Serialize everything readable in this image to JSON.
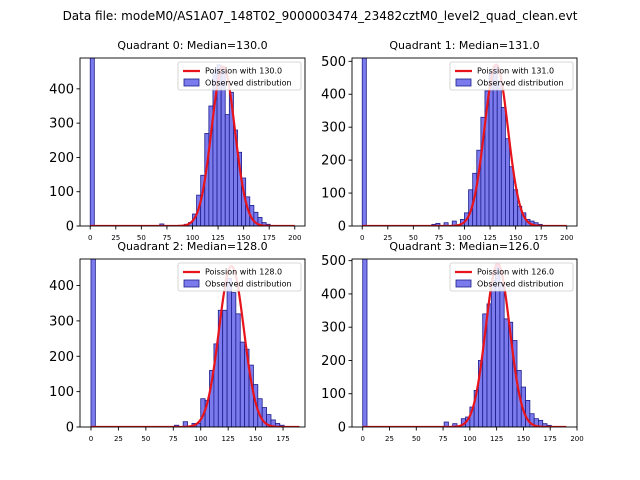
{
  "suptitle": "Data file: modeM0/AS1A07_148T02_9000003474_23482cztM0_level2_quad_clean.evt",
  "colors": {
    "bar_fill": "#7b7bee",
    "bar_edge": "#1d1d8a",
    "fit_line": "#e8141c",
    "axis": "#000000",
    "background": "#ffffff"
  },
  "chart_data": [
    {
      "type": "bar",
      "title": "Quadrant 0: Median=130.0",
      "xlim": [
        -10,
        210
      ],
      "ylim": [
        0,
        490
      ],
      "xticks": [
        0,
        25,
        50,
        75,
        100,
        125,
        150,
        175,
        200
      ],
      "yticks": [
        0,
        100,
        200,
        300,
        400
      ],
      "bin_width": 4,
      "bins": [
        [
          0,
          490
        ],
        [
          68,
          6
        ],
        [
          92,
          5
        ],
        [
          96,
          10
        ],
        [
          100,
          35
        ],
        [
          104,
          90
        ],
        [
          108,
          148
        ],
        [
          112,
          270
        ],
        [
          116,
          350
        ],
        [
          120,
          455
        ],
        [
          124,
          470
        ],
        [
          128,
          460
        ],
        [
          132,
          325
        ],
        [
          136,
          390
        ],
        [
          140,
          280
        ],
        [
          144,
          215
        ],
        [
          148,
          140
        ],
        [
          152,
          85
        ],
        [
          156,
          60
        ],
        [
          160,
          40
        ],
        [
          164,
          25
        ],
        [
          168,
          10
        ],
        [
          172,
          5
        ]
      ],
      "legend": [
        "Poission with 130.0",
        "Observed distribution"
      ],
      "fit": {
        "mean": 130.0,
        "amplitude": 465,
        "x_start": 0,
        "x_end": 200
      }
    },
    {
      "type": "bar",
      "title": "Quadrant 1: Median=131.0",
      "xlim": [
        -10,
        210
      ],
      "ylim": [
        0,
        510
      ],
      "xticks": [
        0,
        25,
        50,
        75,
        100,
        125,
        150,
        175,
        200
      ],
      "yticks": [
        0,
        100,
        200,
        300,
        400,
        500
      ],
      "bin_width": 4,
      "bins": [
        [
          0,
          510
        ],
        [
          68,
          5
        ],
        [
          72,
          8
        ],
        [
          80,
          10
        ],
        [
          88,
          15
        ],
        [
          96,
          20
        ],
        [
          100,
          40
        ],
        [
          104,
          110
        ],
        [
          108,
          160
        ],
        [
          112,
          230
        ],
        [
          116,
          330
        ],
        [
          120,
          410
        ],
        [
          124,
          470
        ],
        [
          128,
          485
        ],
        [
          132,
          440
        ],
        [
          136,
          360
        ],
        [
          140,
          265
        ],
        [
          144,
          180
        ],
        [
          148,
          110
        ],
        [
          152,
          60
        ],
        [
          156,
          40
        ],
        [
          160,
          20
        ],
        [
          164,
          15
        ],
        [
          168,
          10
        ],
        [
          172,
          5
        ]
      ],
      "legend": [
        "Poission with 131.0",
        "Observed distribution"
      ],
      "fit": {
        "mean": 131.0,
        "amplitude": 490,
        "x_start": 0,
        "x_end": 200
      }
    },
    {
      "type": "bar",
      "title": "Quadrant 2: Median=128.0",
      "xlim": [
        -10,
        195
      ],
      "ylim": [
        0,
        475
      ],
      "xticks": [
        0,
        25,
        50,
        75,
        100,
        125,
        150,
        175
      ],
      "yticks": [
        0,
        100,
        200,
        300,
        400
      ],
      "bin_width": 4,
      "bins": [
        [
          0,
          475
        ],
        [
          76,
          5
        ],
        [
          84,
          15
        ],
        [
          92,
          10
        ],
        [
          96,
          10
        ],
        [
          100,
          80
        ],
        [
          104,
          75
        ],
        [
          108,
          160
        ],
        [
          112,
          235
        ],
        [
          116,
          330
        ],
        [
          120,
          330
        ],
        [
          124,
          420
        ],
        [
          128,
          380
        ],
        [
          132,
          320
        ],
        [
          136,
          240
        ],
        [
          140,
          220
        ],
        [
          144,
          175
        ],
        [
          148,
          120
        ],
        [
          152,
          80
        ],
        [
          156,
          55
        ],
        [
          160,
          35
        ],
        [
          164,
          20
        ],
        [
          168,
          10
        ],
        [
          172,
          5
        ]
      ],
      "legend": [
        "Poission with 128.0",
        "Observed distribution"
      ],
      "fit": {
        "mean": 128.0,
        "amplitude": 455,
        "x_start": 0,
        "x_end": 190
      }
    },
    {
      "type": "bar",
      "title": "Quadrant 3: Median=126.0",
      "xlim": [
        -10,
        200
      ],
      "ylim": [
        0,
        505
      ],
      "xticks": [
        0,
        25,
        50,
        75,
        100,
        125,
        150,
        175,
        200
      ],
      "yticks": [
        0,
        100,
        200,
        300,
        400,
        500
      ],
      "bin_width": 4,
      "bins": [
        [
          0,
          505
        ],
        [
          76,
          15
        ],
        [
          84,
          10
        ],
        [
          92,
          25
        ],
        [
          96,
          30
        ],
        [
          100,
          60
        ],
        [
          104,
          110
        ],
        [
          108,
          200
        ],
        [
          112,
          340
        ],
        [
          116,
          370
        ],
        [
          120,
          440
        ],
        [
          124,
          490
        ],
        [
          128,
          435
        ],
        [
          132,
          325
        ],
        [
          136,
          315
        ],
        [
          140,
          260
        ],
        [
          144,
          170
        ],
        [
          148,
          120
        ],
        [
          152,
          80
        ],
        [
          156,
          40
        ],
        [
          160,
          25
        ],
        [
          164,
          20
        ],
        [
          168,
          10
        ],
        [
          172,
          5
        ]
      ],
      "legend": [
        "Poission with 126.0",
        "Observed distribution"
      ],
      "fit": {
        "mean": 126.0,
        "amplitude": 490,
        "x_start": 0,
        "x_end": 190
      }
    }
  ]
}
